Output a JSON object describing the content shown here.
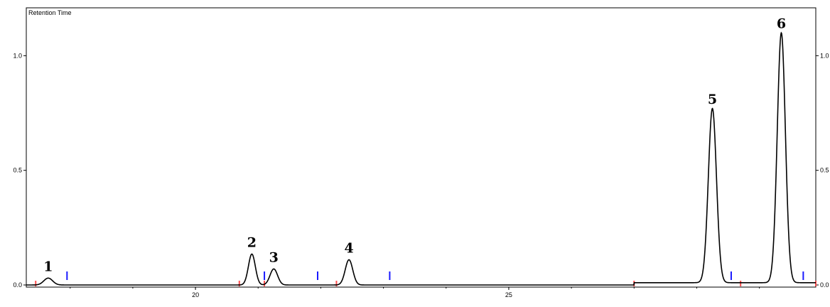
{
  "chart_data": {
    "type": "line",
    "title": "Retention Time",
    "xlabel": "",
    "ylabel": "",
    "xlim": [
      17.3,
      29.9
    ],
    "ylim": [
      0.0,
      1.15
    ],
    "x_ticks": [
      "20",
      "25"
    ],
    "y_ticks_left": [
      "0.0",
      "0.5",
      "1.0"
    ],
    "y_ticks_right": [
      "0.0",
      "0.5",
      "1.0"
    ],
    "grid": false,
    "peaks": [
      {
        "label": "1",
        "x": 17.65,
        "height": 0.03,
        "width": 0.07
      },
      {
        "label": "2",
        "x": 20.9,
        "height": 0.135,
        "width": 0.055
      },
      {
        "label": "3",
        "x": 21.25,
        "height": 0.07,
        "width": 0.06
      },
      {
        "label": "4",
        "x": 22.45,
        "height": 0.11,
        "width": 0.06
      },
      {
        "label": "5",
        "x": 28.25,
        "height": 0.76,
        "width": 0.065
      },
      {
        "label": "6",
        "x": 29.35,
        "height": 1.09,
        "width": 0.065
      }
    ],
    "baseline_step": {
      "x": 27.0,
      "before": 0.0,
      "after": 0.01
    },
    "integration_marks": {
      "red": [
        17.45,
        20.7,
        21.1,
        22.25,
        27.0,
        28.7,
        29.9
      ],
      "blue": [
        17.95,
        21.1,
        21.95,
        23.1,
        28.55,
        29.7
      ]
    },
    "colors": {
      "trace": "#000000",
      "red_mark": "#ff4d4d",
      "blue_mark": "#1a1aff",
      "axis": "#000000"
    }
  }
}
